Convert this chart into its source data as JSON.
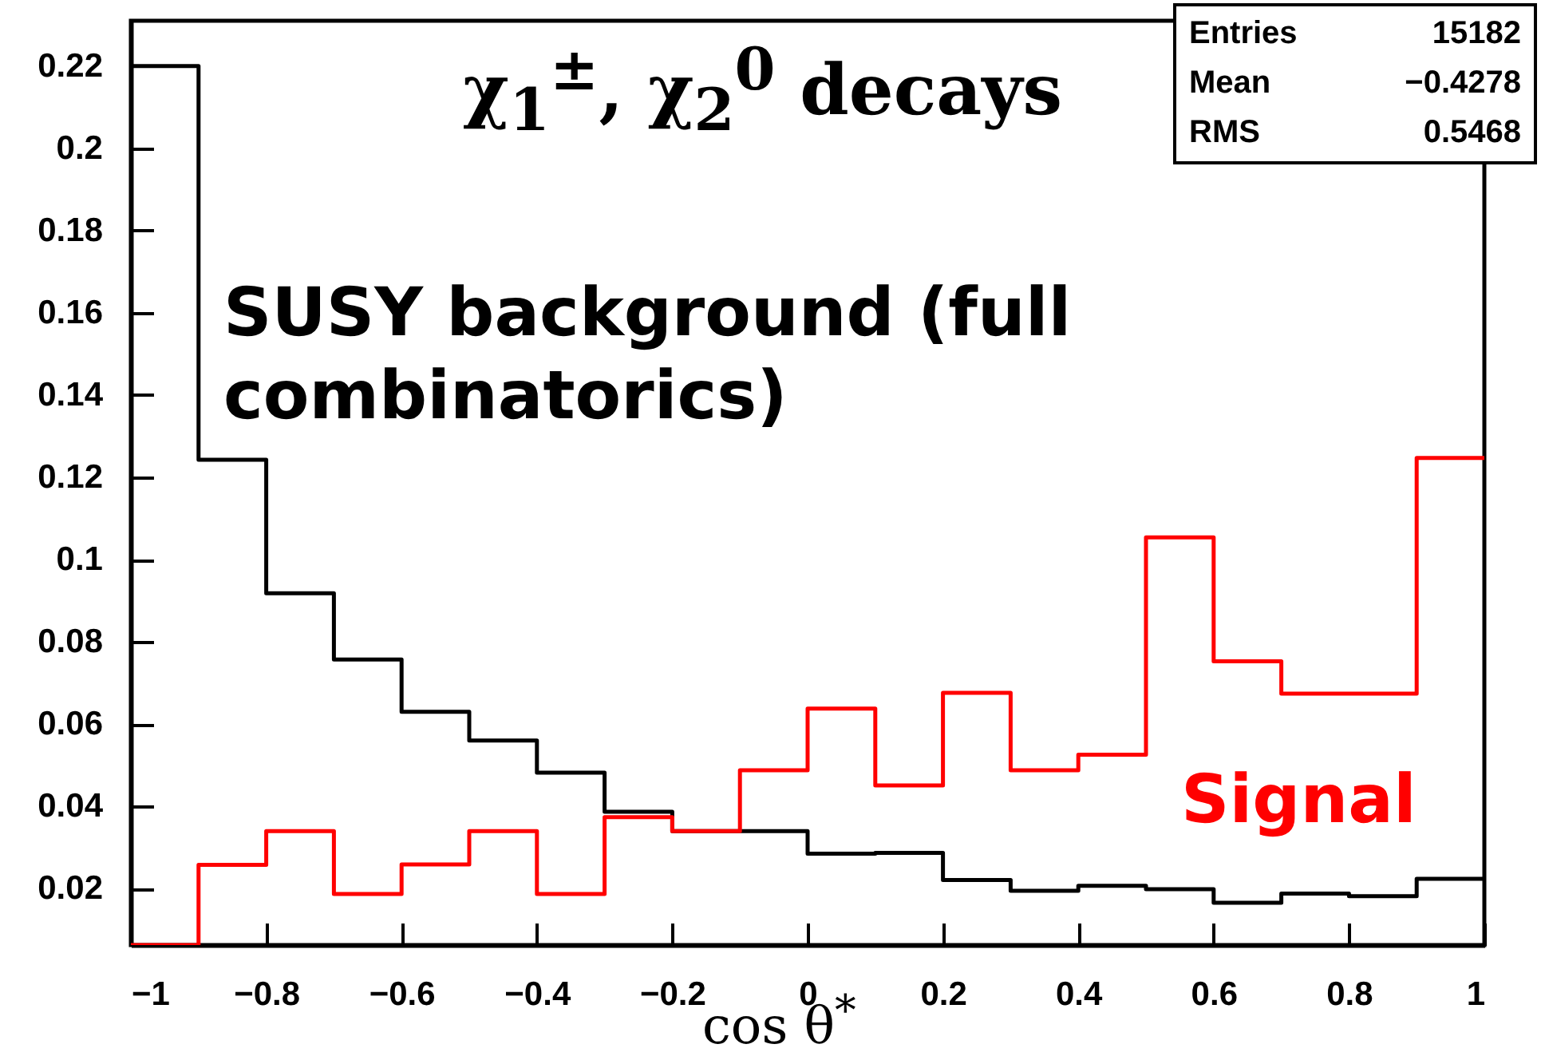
{
  "chart_data": {
    "type": "histogram",
    "title": "χ$_{1}$$^{±}$, χ$_{2}$$^{0}$  decays",
    "xlabel": "cos θ$^{*}$",
    "bins": [
      -1,
      -0.9,
      -0.8,
      -0.7,
      -0.6,
      -0.5,
      -0.4,
      -0.3,
      -0.2,
      -0.1,
      0,
      0.1,
      0.2,
      0.3,
      0.4,
      0.5,
      0.6,
      0.7,
      0.8,
      0.9,
      1
    ],
    "series": [
      {
        "name": "SUSY background (full combinatorics)",
        "color": "#000000",
        "values": [
          0.22,
          0.1243,
          0.0918,
          0.0757,
          0.063,
          0.056,
          0.0482,
          0.0387,
          0.034,
          0.034,
          0.0285,
          0.0287,
          0.0221,
          0.0195,
          0.0207,
          0.0199,
          0.0166,
          0.0188,
          0.0182,
          0.0224
        ]
      },
      {
        "name": "Signal",
        "color": "#ff0000",
        "values": [
          0.0063,
          0.0258,
          0.034,
          0.0187,
          0.0259,
          0.034,
          0.0187,
          0.0374,
          0.034,
          0.0488,
          0.0638,
          0.0451,
          0.0676,
          0.0488,
          0.0526,
          0.1054,
          0.0753,
          0.0674,
          0.0674,
          0.1247
        ]
      }
    ],
    "xlim": [
      -1,
      1
    ],
    "xticks": [
      {
        "value": -1,
        "label": "−1"
      },
      {
        "value": -0.8,
        "label": "−0.8"
      },
      {
        "value": -0.6,
        "label": "−0.6"
      },
      {
        "value": -0.4,
        "label": "−0.4"
      },
      {
        "value": -0.2,
        "label": "−0.2"
      },
      0,
      0.2,
      0.4,
      0.6,
      0.8,
      1
    ],
    "ylim": [
      0.0063,
      0.231
    ],
    "yticks": [
      0.02,
      0.04,
      0.06,
      0.08,
      0.1,
      0.12,
      0.14,
      0.16,
      0.18,
      0.2,
      0.22
    ],
    "grid": false,
    "annotations": [
      "Entries 15182",
      "Mean −0.4278",
      "RMS 0.5468"
    ]
  }
}
